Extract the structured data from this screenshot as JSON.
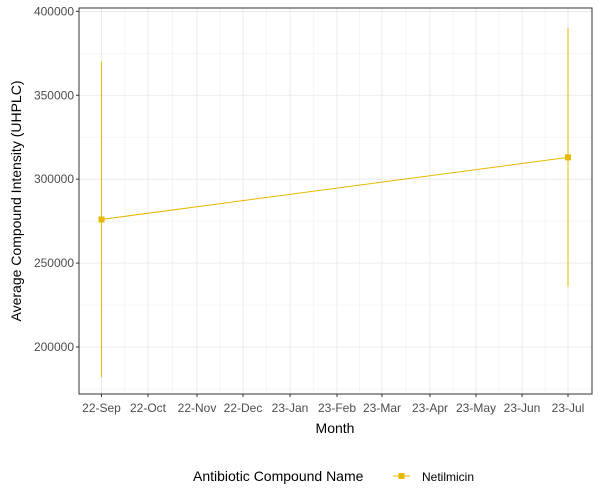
{
  "chart_data": {
    "type": "line",
    "title": "",
    "xlabel": "Month",
    "ylabel": "Average Compound Intensity (UHPLC)",
    "x_ticks": [
      "22-Sep",
      "22-Oct",
      "22-Nov",
      "22-Dec",
      "23-Jan",
      "23-Feb",
      "23-Mar",
      "23-Apr",
      "23-May",
      "23-Jun",
      "23-Jul"
    ],
    "y_ticks": [
      200000,
      250000,
      300000,
      350000,
      400000
    ],
    "y_tick_labels": [
      "200000",
      "250000",
      "300000",
      "350000",
      "400000"
    ],
    "ylim": [
      172000,
      402000
    ],
    "grid": true,
    "legend": {
      "title": "Antibiotic Compound Name",
      "placement": "bottom"
    },
    "series": [
      {
        "name": "Netilmicin",
        "color": "#E7B800",
        "points": [
          {
            "x": "22-Sep",
            "y": 276000,
            "ymin": 182000,
            "ymax": 370000
          },
          {
            "x": "23-Jul",
            "y": 313000,
            "ymin": 236000,
            "ymax": 390000
          }
        ]
      }
    ]
  }
}
